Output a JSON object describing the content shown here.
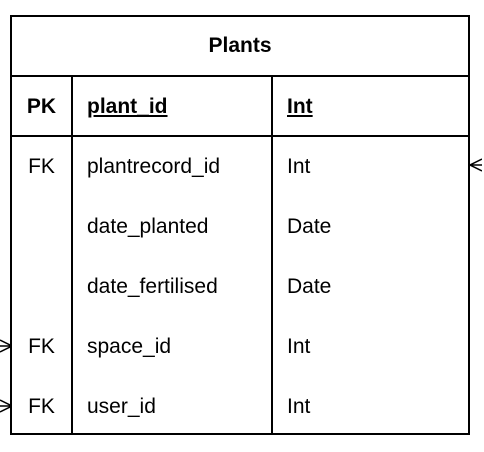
{
  "table": {
    "title": "Plants",
    "primary_key": {
      "key": "PK",
      "name": "plant_id",
      "type": "Int"
    },
    "attributes": [
      {
        "key": "FK",
        "name": "plantrecord_id",
        "type": "Int"
      },
      {
        "key": "",
        "name": "date_planted",
        "type": "Date"
      },
      {
        "key": "",
        "name": "date_fertilised",
        "type": "Date"
      },
      {
        "key": "FK",
        "name": "space_id",
        "type": "Int"
      },
      {
        "key": "FK",
        "name": "user_id",
        "type": "Int"
      }
    ]
  },
  "relations": {
    "plantrecord": "many-right",
    "space": "many-left",
    "user": "many-left"
  }
}
